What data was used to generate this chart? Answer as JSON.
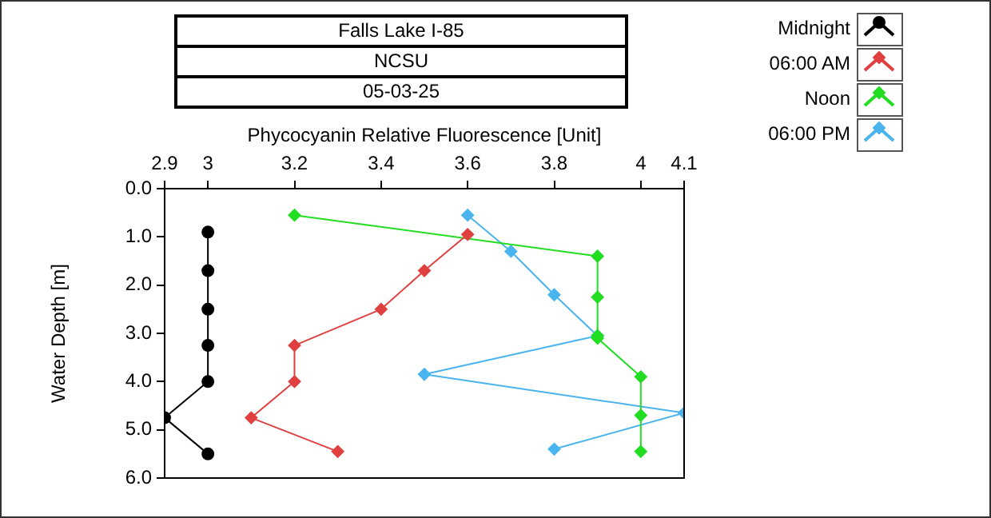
{
  "chart_data": {
    "type": "line",
    "title": "Falls Lake I-85",
    "subtitle": "NCSU",
    "annotations": [
      "05-03-25"
    ],
    "xlabel": "Phycocyanin Relative Fluorescence [Unit]",
    "ylabel": "Water Depth [m]",
    "xlim": [
      2.9,
      4.1
    ],
    "xticks": [
      2.9,
      3,
      3.2,
      3.4,
      3.6,
      3.8,
      4,
      4.1
    ],
    "ylim": [
      6,
      0
    ],
    "yticks": [
      {
        "value": 0,
        "label": "0.0"
      },
      {
        "value": 1,
        "label": "1.0"
      },
      {
        "value": 2,
        "label": "2.0"
      },
      {
        "value": 3,
        "label": "3.0"
      },
      {
        "value": 4,
        "label": "4.0"
      },
      {
        "value": 5,
        "label": "5.0"
      },
      {
        "value": 6,
        "label": "6.0"
      }
    ],
    "grid": false,
    "legend": "top right",
    "line_style": "solid",
    "series": [
      {
        "name": "Midnight",
        "color": "#000000",
        "marker": "circle",
        "x": [
          3,
          3,
          3,
          3,
          3,
          2.9,
          3
        ],
        "values": [
          0.9,
          1.7,
          2.5,
          3.25,
          4.0,
          4.75,
          5.5
        ]
      },
      {
        "name": "06:00 AM",
        "color": "#e04040",
        "marker": "diamond",
        "x": [
          3.6,
          3.5,
          3.4,
          3.2,
          3.2,
          3.1,
          3.3
        ],
        "values": [
          0.95,
          1.7,
          2.5,
          3.25,
          4.0,
          4.75,
          5.45
        ]
      },
      {
        "name": "Noon",
        "color": "#22dd22",
        "marker": "diamond",
        "x": [
          3.2,
          3.9,
          3.9,
          3.9,
          3.9,
          4.0,
          4.0,
          4.0
        ],
        "values": [
          0.55,
          1.4,
          2.25,
          3.05,
          3.1,
          3.9,
          4.7,
          5.45
        ]
      },
      {
        "name": "06:00 PM",
        "color": "#4ab4ee",
        "marker": "diamond",
        "x": [
          3.6,
          3.7,
          3.8,
          3.9,
          3.5,
          4.1,
          3.8
        ],
        "values": [
          0.55,
          1.3,
          2.2,
          3.05,
          3.85,
          4.65,
          5.4
        ]
      }
    ]
  }
}
